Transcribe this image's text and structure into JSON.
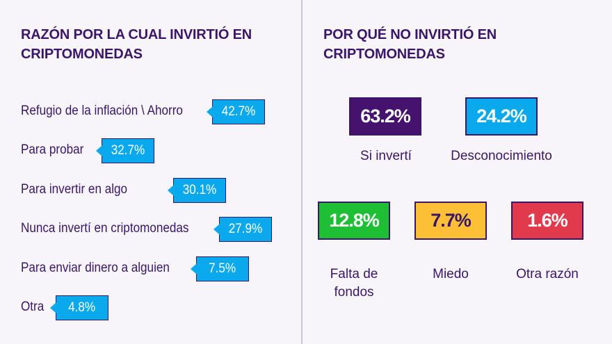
{
  "left": {
    "title_line1": "RAZÓN POR LA CUAL INVIRTIÓ EN",
    "title_line2": "CRIPTOMONEDAS",
    "items": [
      {
        "label": "Refugio de la inflación \\ Ahorro",
        "value": "42.7%"
      },
      {
        "label": "Para probar",
        "value": "32.7%"
      },
      {
        "label": "Para invertir en algo",
        "value": "30.1%"
      },
      {
        "label": "Nunca invertí en criptomonedas",
        "value": "27.9%"
      },
      {
        "label": "Para enviar dinero a alguien",
        "value": "7.5%"
      },
      {
        "label": "Otra",
        "value": "4.8%"
      }
    ],
    "badge_color": "#0aa8ec"
  },
  "right": {
    "title_line1": "POR QUÉ NO INVIRTIÓ EN",
    "title_line2": "CRIPTOMONEDAS",
    "items": [
      {
        "value": "63.2%",
        "label": "Si invertí",
        "color": "#45136e"
      },
      {
        "value": "24.2%",
        "label": "Desconocimiento",
        "color": "#0aa8ec"
      },
      {
        "value": "12.8%",
        "label_line1": "Falta de",
        "label_line2": "fondos",
        "color": "#1fbf35"
      },
      {
        "value": "7.7%",
        "label": "Miedo",
        "color": "#fdbf36"
      },
      {
        "value": "1.6%",
        "label": "Otra razón",
        "color": "#e03a4c"
      }
    ]
  }
}
